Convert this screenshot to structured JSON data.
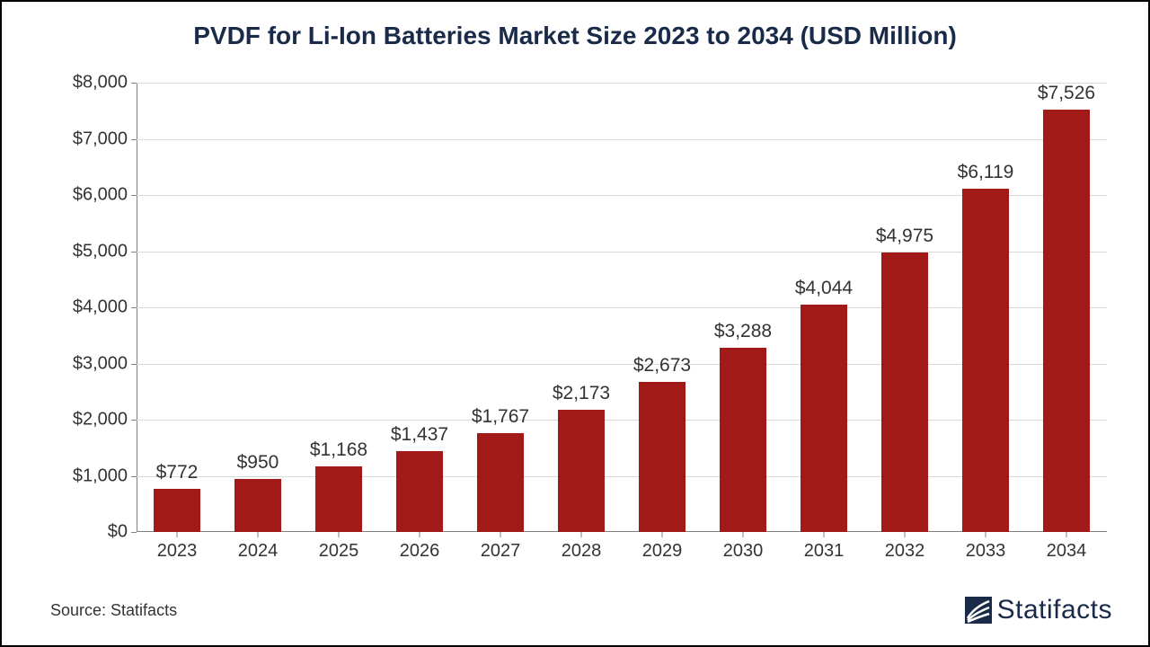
{
  "chart": {
    "type": "bar",
    "title": "PVDF for Li-Ion Batteries Market Size 2023 to 2034 (USD Million)",
    "title_fontsize": 28,
    "title_color": "#1a2b4a",
    "background_color": "#ffffff",
    "border_color": "#000000",
    "grid_color": "#d9d9d9",
    "axis_color": "#7f7f7f",
    "tick_fontsize": 20,
    "label_fontsize": 21,
    "label_color": "#333333",
    "bar_color": "#a21a18",
    "bar_width_ratio": 0.58,
    "ylim": [
      0,
      8000
    ],
    "ytick_step": 1000,
    "yticks": [
      "$0",
      "$1,000",
      "$2,000",
      "$3,000",
      "$4,000",
      "$5,000",
      "$6,000",
      "$7,000",
      "$8,000"
    ],
    "categories": [
      "2023",
      "2024",
      "2025",
      "2026",
      "2027",
      "2028",
      "2029",
      "2030",
      "2031",
      "2032",
      "2033",
      "2034"
    ],
    "values": [
      772,
      950,
      1168,
      1437,
      1767,
      2173,
      2673,
      3288,
      4044,
      4975,
      6119,
      7526
    ],
    "value_labels": [
      "$772",
      "$950",
      "$1,168",
      "$1,437",
      "$1,767",
      "$2,173",
      "$2,673",
      "$3,288",
      "$4,044",
      "$4,975",
      "$6,119",
      "$7,526"
    ]
  },
  "footer": {
    "source_label": "Source: Statifacts",
    "brand_name": "Statifacts",
    "brand_color": "#1a2b4a"
  }
}
